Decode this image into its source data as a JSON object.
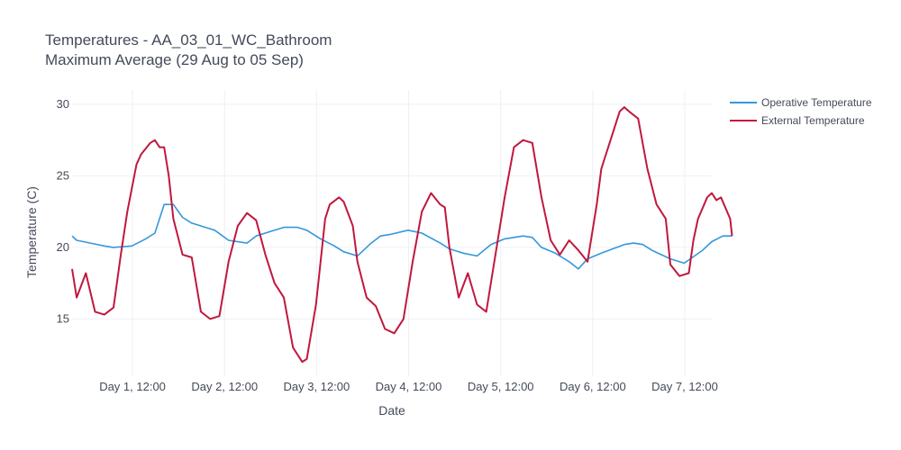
{
  "chart_data": {
    "type": "line",
    "title": "Temperatures - AA_03_01_WC_Bathroom",
    "subtitle": "Maximum Average (29 Aug to 05 Sep)",
    "xlabel": "Date",
    "ylabel": "Temperature (C)",
    "x_unit": "day",
    "xlim": [
      0.55,
      7.5
    ],
    "ylim": [
      11.0,
      31.0
    ],
    "yticks": [
      15,
      20,
      25,
      30
    ],
    "xticks": [
      {
        "value": 1.5,
        "label": "Day 1, 12:00"
      },
      {
        "value": 2.5,
        "label": "Day 2, 12:00"
      },
      {
        "value": 3.5,
        "label": "Day 3, 12:00"
      },
      {
        "value": 4.5,
        "label": "Day 4, 12:00"
      },
      {
        "value": 5.5,
        "label": "Day 5, 12:00"
      },
      {
        "value": 6.5,
        "label": "Day 6, 12:00"
      },
      {
        "value": 7.5,
        "label": "Day 7, 12:00"
      }
    ],
    "grid": true,
    "legend_position": "top-right",
    "series": [
      {
        "name": "Operative Temperature",
        "color": "#3498db",
        "x": [
          0.55,
          0.6,
          0.75,
          0.9,
          1.0,
          1.2,
          1.35,
          1.45,
          1.55,
          1.65,
          1.75,
          1.85,
          2.0,
          2.1,
          2.25,
          2.45,
          2.55,
          2.7,
          2.85,
          3.0,
          3.1,
          3.25,
          3.4,
          3.5,
          3.65,
          3.8,
          3.9,
          4.0,
          4.2,
          4.35,
          4.55,
          4.65,
          4.8,
          4.95,
          5.1,
          5.25,
          5.45,
          5.55,
          5.65,
          5.8,
          5.95,
          6.05,
          6.15,
          6.3,
          6.55,
          6.65,
          6.75,
          6.85,
          7.05,
          7.2,
          7.4,
          7.5,
          7.62,
          7.72
        ],
        "y": [
          20.8,
          20.5,
          20.3,
          20.1,
          20.0,
          20.1,
          20.6,
          21.0,
          23.0,
          23.0,
          22.1,
          21.7,
          21.4,
          21.2,
          20.5,
          20.3,
          20.8,
          21.1,
          21.4,
          21.4,
          21.2,
          20.6,
          20.1,
          19.7,
          19.4,
          20.3,
          20.8,
          20.9,
          21.2,
          21.0,
          20.3,
          19.9,
          19.6,
          19.4,
          20.2,
          20.6,
          20.8,
          20.7,
          20.0,
          19.6,
          19.0,
          18.5,
          19.2,
          19.6,
          20.2,
          20.3,
          20.2,
          19.8,
          19.2,
          18.9,
          19.8,
          20.4,
          20.8,
          20.8
        ]
      },
      {
        "name": "External Temperature",
        "color": "#c0183d",
        "x": [
          0.55,
          0.6,
          0.7,
          0.8,
          0.9,
          1.0,
          1.08,
          1.15,
          1.25,
          1.3,
          1.4,
          1.45,
          1.5,
          1.55,
          1.6,
          1.65,
          1.75,
          1.85,
          1.95,
          2.05,
          2.15,
          2.25,
          2.35,
          2.45,
          2.55,
          2.65,
          2.75,
          2.85,
          2.95,
          3.05,
          3.1,
          3.2,
          3.3,
          3.35,
          3.45,
          3.5,
          3.6,
          3.65,
          3.75,
          3.85,
          3.95,
          4.05,
          4.15,
          4.25,
          4.35,
          4.45,
          4.55,
          4.6,
          4.65,
          4.75,
          4.85,
          4.95,
          5.05,
          5.15,
          5.25,
          5.35,
          5.45,
          5.55,
          5.65,
          5.75,
          5.85,
          5.95,
          6.05,
          6.15,
          6.25,
          6.3,
          6.4,
          6.5,
          6.55,
          6.6,
          6.7,
          6.8,
          6.9,
          7.0,
          7.05,
          7.15,
          7.25,
          7.3,
          7.35,
          7.45,
          7.5,
          7.55,
          7.6,
          7.7,
          7.72
        ],
        "y": [
          18.5,
          16.5,
          18.2,
          15.5,
          15.3,
          15.8,
          19.5,
          22.5,
          25.8,
          26.5,
          27.3,
          27.5,
          27.0,
          27.0,
          25.0,
          22.0,
          19.5,
          19.3,
          15.5,
          15.0,
          15.2,
          19.0,
          21.5,
          22.4,
          21.9,
          19.5,
          17.5,
          16.5,
          13.0,
          12.0,
          12.2,
          16.0,
          22.0,
          23.0,
          23.5,
          23.2,
          21.5,
          19.0,
          16.5,
          15.9,
          14.3,
          14.0,
          15.0,
          19.0,
          22.5,
          23.8,
          23.0,
          22.8,
          20.0,
          16.5,
          18.2,
          16.0,
          15.5,
          19.5,
          23.5,
          27.0,
          27.5,
          27.3,
          23.5,
          20.5,
          19.5,
          20.5,
          19.8,
          19.0,
          23.0,
          25.5,
          27.5,
          29.5,
          29.8,
          29.5,
          29.0,
          25.5,
          23.0,
          22.0,
          18.8,
          18.0,
          18.2,
          20.5,
          22.0,
          23.5,
          23.8,
          23.3,
          23.5,
          22.0,
          20.8
        ]
      }
    ]
  }
}
